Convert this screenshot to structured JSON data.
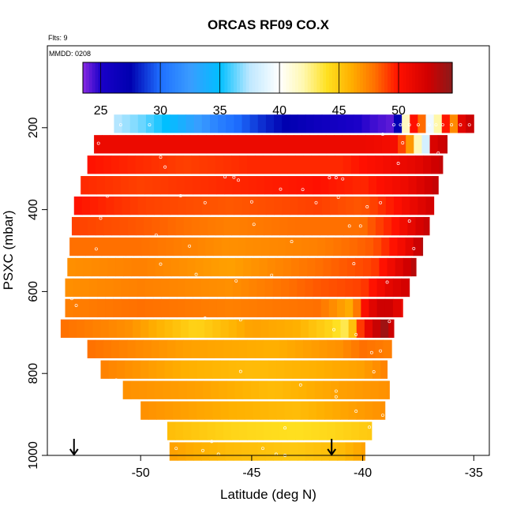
{
  "chart_data": {
    "type": "heatmap",
    "title": "ORCAS RF09 CO.X",
    "note_flights": "Flts: 9",
    "note_date": "MMDD: 0208",
    "xlabel": "Latitude (deg N)",
    "ylabel": "PSXC (mbar)",
    "xlim": [
      -54.2,
      -34.3
    ],
    "ylim": [
      1000,
      0
    ],
    "x_ticks": [
      -50,
      -45,
      -40,
      -35
    ],
    "x_tick_labels": [
      "-50",
      "-45",
      "-40",
      "-35"
    ],
    "y_ticks": [
      200,
      400,
      600,
      800,
      1000
    ],
    "y_tick_labels": [
      "200",
      "400",
      "600",
      "800",
      "1000"
    ],
    "grid": false,
    "colorbar": {
      "range": [
        23.5,
        54.5
      ],
      "ticks": [
        25,
        30,
        35,
        40,
        45,
        50
      ],
      "tick_labels": [
        "25",
        "30",
        "35",
        "40",
        "45",
        "50"
      ],
      "stops": [
        {
          "value": 23.5,
          "color": "#8a2be2"
        },
        {
          "value": 25,
          "color": "#1a00c8"
        },
        {
          "value": 27.5,
          "color": "#0000b0"
        },
        {
          "value": 30,
          "color": "#1e6fff"
        },
        {
          "value": 32.5,
          "color": "#3a9cff"
        },
        {
          "value": 35,
          "color": "#00bfff"
        },
        {
          "value": 37.5,
          "color": "#bfe8ff"
        },
        {
          "value": 40,
          "color": "#ffffff"
        },
        {
          "value": 42,
          "color": "#fff8b0"
        },
        {
          "value": 44,
          "color": "#ffe020"
        },
        {
          "value": 46,
          "color": "#ffb000"
        },
        {
          "value": 48,
          "color": "#ff7000"
        },
        {
          "value": 50,
          "color": "#ff1000"
        },
        {
          "value": 52.5,
          "color": "#d00000"
        },
        {
          "value": 54.5,
          "color": "#8b1a1a"
        }
      ]
    },
    "layers": [
      {
        "p": 190,
        "lat_min": -51.2,
        "lat_max": -35.0,
        "anchors": [
          [
            -51.2,
            37.5
          ],
          [
            -50.0,
            36.5
          ],
          [
            -48.5,
            34.5
          ],
          [
            -46.5,
            31
          ],
          [
            -44.5,
            28.5
          ],
          [
            -42.5,
            26.5
          ],
          [
            -41.0,
            25.5
          ],
          [
            -39.5,
            24.5
          ],
          [
            -38.5,
            24
          ],
          [
            -38.0,
            44
          ],
          [
            -37.6,
            52
          ],
          [
            -37.2,
            46
          ],
          [
            -36.8,
            34
          ],
          [
            -36.4,
            52
          ],
          [
            -36.0,
            46
          ],
          [
            -35.5,
            52
          ],
          [
            -35.0,
            53
          ]
        ]
      },
      {
        "p": 240,
        "lat_min": -52.1,
        "lat_max": -36.2,
        "anchors": [
          [
            -52.1,
            51
          ],
          [
            -46,
            51
          ],
          [
            -40,
            51
          ],
          [
            -38.5,
            50.5
          ],
          [
            -37.6,
            45
          ],
          [
            -37.3,
            33
          ],
          [
            -36.8,
            52
          ],
          [
            -36.2,
            53
          ]
        ]
      },
      {
        "p": 290,
        "lat_min": -52.4,
        "lat_max": -36.4,
        "anchors": [
          [
            -52.4,
            50
          ],
          [
            -48,
            49
          ],
          [
            -45,
            49.5
          ],
          [
            -41,
            49.5
          ],
          [
            -39,
            50.5
          ],
          [
            -37.5,
            51.5
          ],
          [
            -36.4,
            53
          ]
        ]
      },
      {
        "p": 340,
        "lat_min": -52.7,
        "lat_max": -36.6,
        "anchors": [
          [
            -52.7,
            49.5
          ],
          [
            -50,
            49
          ],
          [
            -46,
            49.5
          ],
          [
            -42,
            50
          ],
          [
            -40,
            49.5
          ],
          [
            -38,
            51
          ],
          [
            -36.6,
            53
          ]
        ]
      },
      {
        "p": 390,
        "lat_min": -53.0,
        "lat_max": -36.8,
        "anchors": [
          [
            -53.0,
            50
          ],
          [
            -50,
            49
          ],
          [
            -46,
            48.5
          ],
          [
            -42,
            49
          ],
          [
            -40,
            48.5
          ],
          [
            -38.5,
            50
          ],
          [
            -36.8,
            52.5
          ]
        ]
      },
      {
        "p": 440,
        "lat_min": -53.1,
        "lat_max": -37.0,
        "anchors": [
          [
            -53.1,
            49
          ],
          [
            -50,
            48.5
          ],
          [
            -46,
            47.5
          ],
          [
            -43,
            48
          ],
          [
            -40,
            48
          ],
          [
            -38.5,
            50
          ],
          [
            -37.0,
            53
          ]
        ]
      },
      {
        "p": 490,
        "lat_min": -53.2,
        "lat_max": -37.3,
        "anchors": [
          [
            -53.2,
            48
          ],
          [
            -50,
            48
          ],
          [
            -46,
            47
          ],
          [
            -42,
            47.5
          ],
          [
            -39.5,
            48.5
          ],
          [
            -38,
            51
          ],
          [
            -37.3,
            53.5
          ]
        ]
      },
      {
        "p": 540,
        "lat_min": -53.3,
        "lat_max": -37.6,
        "anchors": [
          [
            -53.3,
            47
          ],
          [
            -50,
            47.5
          ],
          [
            -46,
            46.5
          ],
          [
            -42,
            48
          ],
          [
            -39.5,
            49
          ],
          [
            -38.2,
            52
          ],
          [
            -37.6,
            53.5
          ]
        ]
      },
      {
        "p": 590,
        "lat_min": -53.4,
        "lat_max": -37.9,
        "anchors": [
          [
            -53.4,
            47
          ],
          [
            -50,
            47.5
          ],
          [
            -46,
            47
          ],
          [
            -42,
            48.5
          ],
          [
            -40,
            49
          ],
          [
            -38.8,
            51.5
          ],
          [
            -37.9,
            52.5
          ]
        ]
      },
      {
        "p": 640,
        "lat_min": -53.4,
        "lat_max": -38.2,
        "anchors": [
          [
            -53.4,
            47.5
          ],
          [
            -50,
            48
          ],
          [
            -46,
            47.5
          ],
          [
            -42,
            48
          ],
          [
            -40.5,
            46
          ],
          [
            -39.8,
            51
          ],
          [
            -39,
            53
          ],
          [
            -38.2,
            51
          ]
        ]
      },
      {
        "p": 690,
        "lat_min": -53.6,
        "lat_max": -38.6,
        "anchors": [
          [
            -53.6,
            48
          ],
          [
            -50.5,
            47
          ],
          [
            -47.5,
            44.5
          ],
          [
            -45,
            46.5
          ],
          [
            -43,
            46
          ],
          [
            -41.5,
            44.5
          ],
          [
            -40.6,
            43
          ],
          [
            -40.3,
            48
          ],
          [
            -39.6,
            52
          ],
          [
            -39,
            54
          ],
          [
            -38.6,
            52
          ]
        ]
      },
      {
        "p": 740,
        "lat_min": -52.4,
        "lat_max": -38.7,
        "anchors": [
          [
            -52.4,
            48
          ],
          [
            -48,
            46.5
          ],
          [
            -44,
            46
          ],
          [
            -41,
            47
          ],
          [
            -40,
            48
          ],
          [
            -38.7,
            47.5
          ]
        ]
      },
      {
        "p": 790,
        "lat_min": -51.8,
        "lat_max": -38.9,
        "anchors": [
          [
            -51.8,
            47.5
          ],
          [
            -48,
            46
          ],
          [
            -45,
            45.5
          ],
          [
            -42,
            46
          ],
          [
            -40,
            46.5
          ],
          [
            -38.9,
            47.5
          ]
        ]
      },
      {
        "p": 840,
        "lat_min": -50.8,
        "lat_max": -38.8,
        "anchors": [
          [
            -50.8,
            47
          ],
          [
            -47.5,
            46.5
          ],
          [
            -44,
            45.5
          ],
          [
            -41,
            46.5
          ],
          [
            -38.8,
            47
          ]
        ]
      },
      {
        "p": 890,
        "lat_min": -50.0,
        "lat_max": -39.0,
        "anchors": [
          [
            -50.0,
            47
          ],
          [
            -46,
            46
          ],
          [
            -43,
            45.5
          ],
          [
            -40.5,
            46.5
          ],
          [
            -39.0,
            47
          ]
        ]
      },
      {
        "p": 940,
        "lat_min": -48.8,
        "lat_max": -39.6,
        "anchors": [
          [
            -48.8,
            45.5
          ],
          [
            -46,
            44.5
          ],
          [
            -43,
            44
          ],
          [
            -41,
            44.5
          ],
          [
            -39.6,
            45
          ]
        ]
      },
      {
        "p": 990,
        "lat_min": -48.7,
        "lat_max": -39.9,
        "anchors": [
          [
            -48.7,
            46.5
          ],
          [
            -46,
            45.5
          ],
          [
            -43,
            45
          ],
          [
            -41,
            45.5
          ],
          [
            -39.9,
            46.5
          ]
        ]
      }
    ],
    "samples": [
      [
        -50.9,
        193
      ],
      [
        -49.6,
        193
      ],
      [
        -38.6,
        193
      ],
      [
        -38.3,
        193
      ],
      [
        -37.9,
        193
      ],
      [
        -37.5,
        193
      ],
      [
        -37.0,
        193
      ],
      [
        -36.7,
        193
      ],
      [
        -36.4,
        193
      ],
      [
        -36.0,
        193
      ],
      [
        -35.6,
        193
      ],
      [
        -35.2,
        193
      ],
      [
        -34.9,
        193
      ],
      [
        -39.1,
        216
      ],
      [
        -38.2,
        237
      ],
      [
        -51.9,
        238
      ],
      [
        -49.1,
        272
      ],
      [
        -36.6,
        262
      ],
      [
        -48.9,
        296
      ],
      [
        -46.2,
        320
      ],
      [
        -45.8,
        321
      ],
      [
        -45.6,
        328
      ],
      [
        -41.5,
        322
      ],
      [
        -41.2,
        322
      ],
      [
        -40.9,
        325
      ],
      [
        -38.4,
        287
      ],
      [
        -43.7,
        350
      ],
      [
        -42.7,
        351
      ],
      [
        -51.5,
        367
      ],
      [
        -48.2,
        366
      ],
      [
        -47.1,
        383
      ],
      [
        -45.0,
        381
      ],
      [
        -42.1,
        383
      ],
      [
        -41.1,
        370
      ],
      [
        -39.8,
        393
      ],
      [
        -39.2,
        383
      ],
      [
        -51.8,
        421
      ],
      [
        -44.9,
        436
      ],
      [
        -40.6,
        440
      ],
      [
        -40.1,
        440
      ],
      [
        -37.9,
        428
      ],
      [
        -52.0,
        496
      ],
      [
        -49.3,
        462
      ],
      [
        -47.8,
        489
      ],
      [
        -43.2,
        478
      ],
      [
        -37.7,
        495
      ],
      [
        -49.1,
        533
      ],
      [
        -40.4,
        532
      ],
      [
        -47.5,
        558
      ],
      [
        -44.1,
        560
      ],
      [
        -37.4,
        560
      ],
      [
        -45.7,
        574
      ],
      [
        -38.9,
        577
      ],
      [
        -53.1,
        617
      ],
      [
        -52.9,
        634
      ],
      [
        -47.1,
        665
      ],
      [
        -45.5,
        669
      ],
      [
        -38.8,
        673
      ],
      [
        -41.3,
        693
      ],
      [
        -40.3,
        705
      ],
      [
        -39.6,
        749
      ],
      [
        -38.6,
        736
      ],
      [
        -39.2,
        745
      ],
      [
        -38.4,
        760
      ],
      [
        -39.5,
        796
      ],
      [
        -51.1,
        816
      ],
      [
        -45.5,
        795
      ],
      [
        -42.8,
        828
      ],
      [
        -41.2,
        843
      ],
      [
        -41.2,
        857
      ],
      [
        -40.3,
        892
      ],
      [
        -43.5,
        933
      ],
      [
        -39.7,
        931
      ],
      [
        -39.1,
        902
      ],
      [
        -46.8,
        966
      ],
      [
        -48.4,
        983
      ],
      [
        -47.2,
        988
      ],
      [
        -44.5,
        983
      ],
      [
        -43.9,
        997
      ],
      [
        -43.5,
        1000
      ],
      [
        -46.5,
        997
      ]
    ],
    "markers": [
      {
        "lat": -53.0,
        "symbol": "down-arrow"
      },
      {
        "lat": -41.4,
        "symbol": "down-arrow"
      }
    ]
  }
}
